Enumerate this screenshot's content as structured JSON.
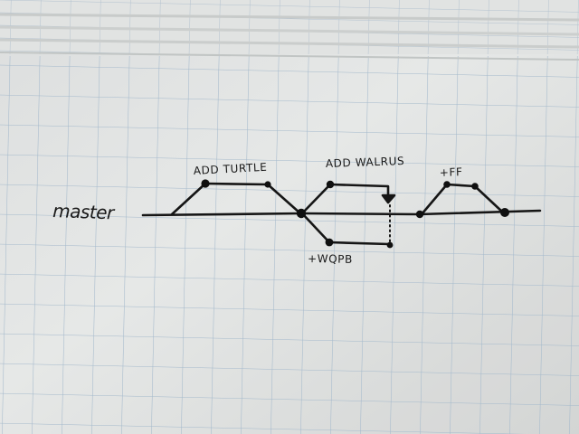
{
  "diagram": {
    "type": "hand-drawn git branch diagram on graph paper",
    "main_label": "master",
    "branch_labels": {
      "turtle": "ADD TURTLE",
      "walrus": "ADD WALRUS",
      "wa_pb": "+WQPB",
      "ff": "+FF"
    },
    "colors": {
      "paper": "#eef0ef",
      "grid": "#a9bfd2",
      "ink": "#161616"
    }
  }
}
